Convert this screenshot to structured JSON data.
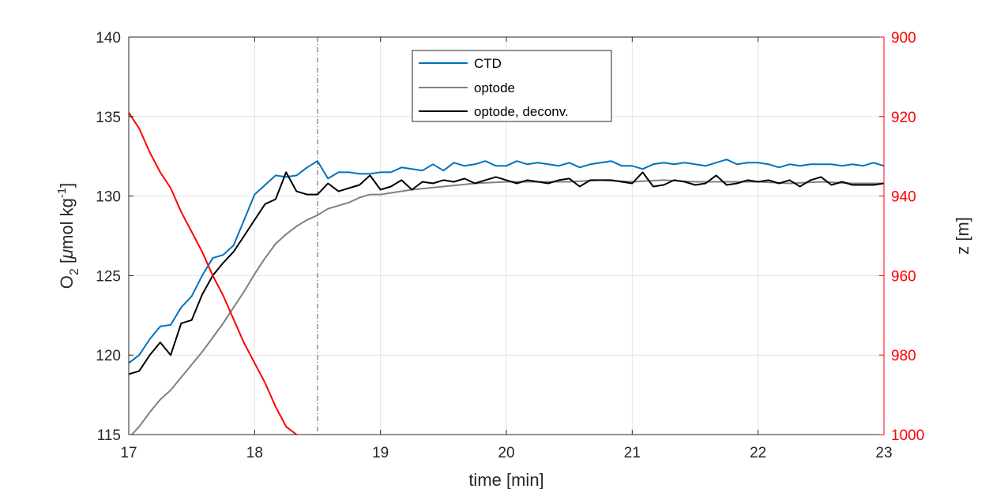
{
  "chart_data": {
    "type": "line",
    "title": "",
    "xlabel": "time [min]",
    "ylabel_main": "O",
    "ylabel_sub": "2",
    "ylabel_rest": " [",
    "ylabel_mu": "μ",
    "ylabel_unit": "mol kg",
    "ylabel_sup": "-1",
    "ylabel_close": "]",
    "y2label": "z [m]",
    "xlim": [
      17,
      23
    ],
    "ylim": [
      115,
      140
    ],
    "y2lim": [
      900,
      1000
    ],
    "y2_reversed": true,
    "grid": true,
    "legend_position": "top-center",
    "x_ticks": [
      "17",
      "18",
      "19",
      "20",
      "21",
      "22",
      "23"
    ],
    "y_ticks": [
      "115",
      "120",
      "125",
      "130",
      "135",
      "140"
    ],
    "y2_ticks": [
      "900",
      "920",
      "940",
      "960",
      "980",
      "1000"
    ],
    "vline_x": 18.5,
    "colors": {
      "ctd": "#0072BD",
      "optode": "#808080",
      "deconv": "#000000",
      "depth": "#FF0000",
      "right_axis": "#FF0000",
      "grid": "#e3e3e3",
      "axis": "#262626"
    },
    "series": [
      {
        "name": "CTD",
        "axis": "left",
        "x": [
          17.0,
          17.083,
          17.167,
          17.25,
          17.333,
          17.417,
          17.5,
          17.583,
          17.667,
          17.75,
          17.833,
          17.917,
          18.0,
          18.083,
          18.167,
          18.25,
          18.333,
          18.417,
          18.5,
          18.583,
          18.667,
          18.75,
          18.833,
          18.917,
          19.0,
          19.083,
          19.167,
          19.25,
          19.333,
          19.417,
          19.5,
          19.583,
          19.667,
          19.75,
          19.833,
          19.917,
          20.0,
          20.083,
          20.167,
          20.25,
          20.333,
          20.417,
          20.5,
          20.583,
          20.667,
          20.75,
          20.833,
          20.917,
          21.0,
          21.083,
          21.167,
          21.25,
          21.333,
          21.417,
          21.5,
          21.583,
          21.667,
          21.75,
          21.833,
          21.917,
          22.0,
          22.083,
          22.167,
          22.25,
          22.333,
          22.417,
          22.5,
          22.583,
          22.667,
          22.75,
          22.833,
          22.917,
          23.0
        ],
        "values": [
          119.5,
          120.0,
          121.0,
          121.8,
          121.9,
          123.0,
          123.7,
          125.0,
          126.1,
          126.3,
          126.9,
          128.5,
          130.1,
          130.7,
          131.3,
          131.2,
          131.3,
          131.8,
          132.2,
          131.1,
          131.5,
          131.5,
          131.4,
          131.4,
          131.5,
          131.5,
          131.8,
          131.7,
          131.6,
          132.0,
          131.6,
          132.1,
          131.9,
          132.0,
          132.2,
          131.9,
          131.9,
          132.2,
          132.0,
          132.1,
          132.0,
          131.9,
          132.1,
          131.8,
          132.0,
          132.1,
          132.2,
          131.9,
          131.9,
          131.7,
          132.0,
          132.1,
          132.0,
          132.1,
          132.0,
          131.9,
          132.1,
          132.3,
          132.0,
          132.1,
          132.1,
          132.0,
          131.8,
          132.0,
          131.9,
          132.0,
          132.0,
          132.0,
          131.9,
          132.0,
          131.9,
          132.1,
          131.9
        ]
      },
      {
        "name": "optode",
        "axis": "left",
        "x": [
          17.0,
          17.083,
          17.167,
          17.25,
          17.333,
          17.417,
          17.5,
          17.583,
          17.667,
          17.75,
          17.833,
          17.917,
          18.0,
          18.083,
          18.167,
          18.25,
          18.333,
          18.417,
          18.5,
          18.583,
          18.667,
          18.75,
          18.833,
          18.917,
          19.0,
          19.25,
          19.5,
          19.75,
          20.0,
          20.25,
          20.5,
          20.75,
          21.0,
          21.25,
          21.5,
          21.75,
          22.0,
          22.25,
          22.5,
          22.75,
          23.0
        ],
        "values": [
          114.8,
          115.5,
          116.4,
          117.2,
          117.8,
          118.6,
          119.4,
          120.2,
          121.1,
          122.0,
          123.0,
          124.0,
          125.1,
          126.1,
          127.0,
          127.6,
          128.1,
          128.5,
          128.8,
          129.2,
          129.4,
          129.6,
          129.9,
          130.1,
          130.1,
          130.4,
          130.6,
          130.8,
          130.9,
          130.9,
          130.9,
          131.0,
          130.9,
          131.0,
          130.9,
          130.9,
          130.9,
          130.8,
          130.9,
          130.8,
          130.8
        ]
      },
      {
        "name": "optode, deconv.",
        "axis": "left",
        "x": [
          17.0,
          17.083,
          17.167,
          17.25,
          17.333,
          17.417,
          17.5,
          17.583,
          17.667,
          17.75,
          17.833,
          17.917,
          18.0,
          18.083,
          18.167,
          18.25,
          18.333,
          18.417,
          18.5,
          18.583,
          18.667,
          18.75,
          18.833,
          18.917,
          19.0,
          19.083,
          19.167,
          19.25,
          19.333,
          19.417,
          19.5,
          19.583,
          19.667,
          19.75,
          19.833,
          19.917,
          20.0,
          20.083,
          20.167,
          20.25,
          20.333,
          20.417,
          20.5,
          20.583,
          20.667,
          20.75,
          20.833,
          20.917,
          21.0,
          21.083,
          21.167,
          21.25,
          21.333,
          21.417,
          21.5,
          21.583,
          21.667,
          21.75,
          21.833,
          21.917,
          22.0,
          22.083,
          22.167,
          22.25,
          22.333,
          22.417,
          22.5,
          22.583,
          22.667,
          22.75,
          22.833,
          22.917,
          23.0
        ],
        "values": [
          118.8,
          119.0,
          120.0,
          120.8,
          120.0,
          122.0,
          122.2,
          123.8,
          125.0,
          125.8,
          126.5,
          127.5,
          128.5,
          129.5,
          129.8,
          131.5,
          130.3,
          130.1,
          130.1,
          130.8,
          130.3,
          130.5,
          130.7,
          131.3,
          130.4,
          130.6,
          131.0,
          130.4,
          130.9,
          130.8,
          131.0,
          130.9,
          131.1,
          130.8,
          131.0,
          131.2,
          131.0,
          130.8,
          131.0,
          130.9,
          130.8,
          131.0,
          131.1,
          130.6,
          131.0,
          131.0,
          131.0,
          130.9,
          130.8,
          131.5,
          130.6,
          130.7,
          131.0,
          130.9,
          130.7,
          130.8,
          131.3,
          130.7,
          130.8,
          131.0,
          130.9,
          131.0,
          130.8,
          131.0,
          130.6,
          131.0,
          131.2,
          130.7,
          130.9,
          130.7,
          130.7,
          130.7,
          130.8
        ]
      },
      {
        "name": "",
        "axis": "right",
        "x": [
          17.0,
          17.083,
          17.167,
          17.25,
          17.333,
          17.417,
          17.5,
          17.583,
          17.667,
          17.75,
          17.833,
          17.917,
          18.0,
          18.083,
          18.167,
          18.25,
          18.333,
          18.417,
          18.5,
          18.583,
          18.667,
          18.75,
          18.833,
          18.917,
          19.0,
          19.083,
          19.167,
          19.25,
          19.333,
          19.417,
          19.5,
          19.583,
          19.667,
          19.75,
          19.833,
          19.917,
          20.0,
          20.083,
          20.167,
          20.25,
          20.333,
          20.417,
          20.5,
          20.583,
          20.667,
          20.75,
          20.833,
          20.917,
          21.0,
          21.083,
          21.167,
          21.25,
          21.333,
          21.417,
          21.5,
          21.583,
          21.667,
          21.75,
          21.833,
          21.917,
          22.0,
          22.083,
          22.167,
          22.25,
          22.333,
          22.417,
          22.5,
          22.583,
          22.667,
          22.75,
          22.833,
          22.917,
          23.0
        ],
        "values": [
          919,
          923,
          929,
          934,
          938,
          944,
          949,
          954,
          960,
          965,
          971,
          977,
          982,
          987,
          993,
          998,
          1000,
          1002,
          1003,
          1002,
          1003,
          1003,
          1003,
          1003,
          1003,
          1003,
          1003,
          1003,
          1003,
          1003,
          1004,
          1003,
          1003,
          1003,
          1003,
          1003,
          1003,
          1003,
          1003,
          1003,
          1003,
          1003,
          1003,
          1003,
          1003,
          1003,
          1003,
          1003,
          1003,
          1003,
          1003,
          1003,
          1003,
          1003,
          1003,
          1004,
          1003,
          1003,
          1003,
          1003,
          1003,
          1003,
          1003,
          1003,
          1003,
          1003,
          1003,
          1003,
          1003,
          1003,
          1003,
          1003,
          1003
        ]
      }
    ]
  }
}
